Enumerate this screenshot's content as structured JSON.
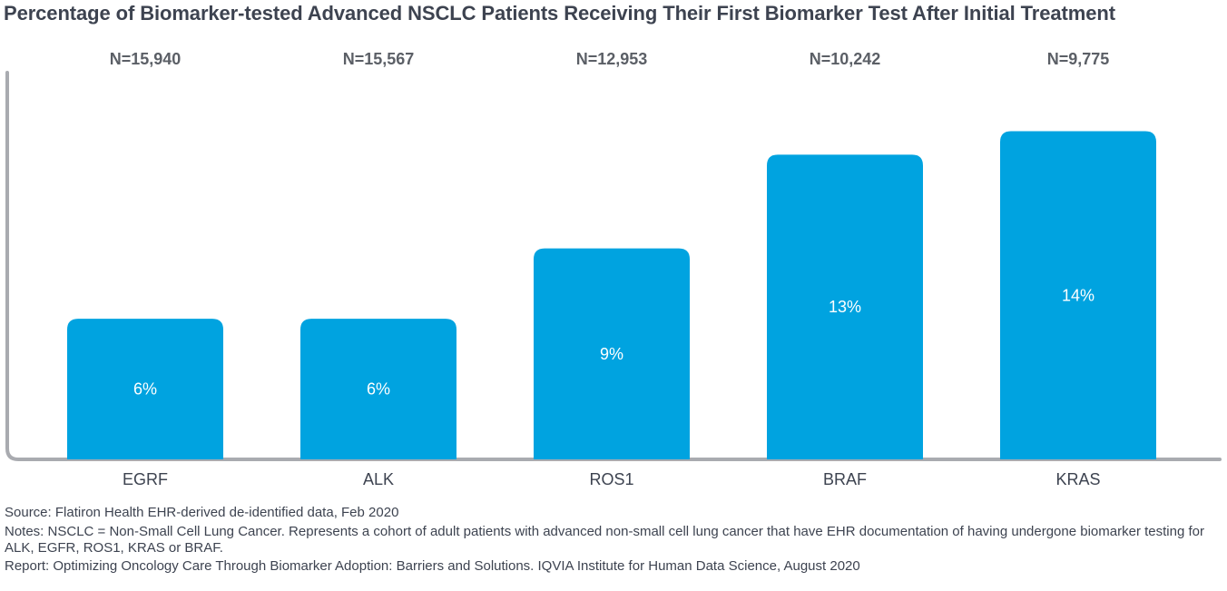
{
  "title": "Percentage of Biomarker-tested Advanced NSCLC Patients Receiving Their First Biomarker Test After Initial Treatment",
  "colors": {
    "bar": "#00a3e0",
    "axis": "#a9abb0",
    "text": "#3d4350",
    "bar_label": "#ffffff"
  },
  "chart_data": {
    "type": "bar",
    "title": "Percentage of Biomarker-tested Advanced NSCLC Patients Receiving Their First Biomarker Test After Initial Treatment",
    "categories": [
      "EGRF",
      "ALK",
      "ROS1",
      "BRAF",
      "KRAS"
    ],
    "values": [
      6,
      6,
      9,
      13,
      14
    ],
    "value_labels": [
      "6%",
      "6%",
      "9%",
      "13%",
      "14%"
    ],
    "n_labels": [
      "N=15,940",
      "N=15,567",
      "N=12,953",
      "N=10,242",
      "N=9,775"
    ],
    "xlabel": "",
    "ylabel": "",
    "unit": "%",
    "ylim": [
      0,
      16.5
    ],
    "grid": false,
    "legend": "none"
  },
  "footer": {
    "source": "Source: Flatiron Health EHR-derived de-identified data, Feb 2020",
    "notes": "Notes: NSCLC = Non-Small Cell Lung Cancer. Represents a cohort of adult patients with advanced non-small cell lung cancer that have EHR documentation of having undergone biomarker testing for ALK, EGFR, ROS1, KRAS or BRAF.",
    "report": "Report: Optimizing Oncology Care Through Biomarker Adoption: Barriers and Solutions. IQVIA Institute for Human Data Science, August 2020"
  }
}
